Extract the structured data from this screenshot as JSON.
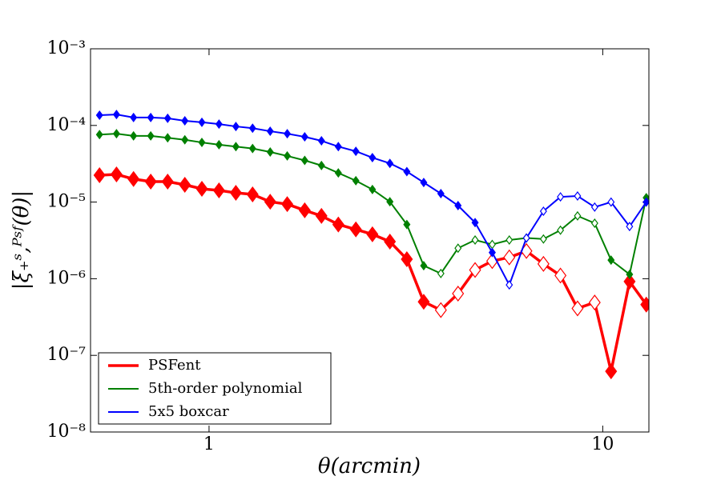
{
  "chart_data": {
    "type": "line",
    "x_label": "θ(arcmin)",
    "y_label": "|ξ₊ˢ,ᴾˢᶠ(θ)|",
    "log_x": true,
    "log_y": true,
    "xlim": [
      0.5,
      13.1
    ],
    "ylim": [
      1e-08,
      0.001
    ],
    "xticks": [
      1,
      10
    ],
    "yticks": [
      {
        "value": 1e-08,
        "label": "10⁻⁸"
      },
      {
        "value": 1e-07,
        "label": "10⁻⁷"
      },
      {
        "value": 1e-06,
        "label": "10⁻⁶"
      },
      {
        "value": 1e-05,
        "label": "10⁻⁵"
      },
      {
        "value": 0.0001,
        "label": "10⁻⁴"
      },
      {
        "value": 0.001,
        "label": "10⁻³"
      }
    ],
    "legend": "lower left",
    "x": [
      0.527,
      0.582,
      0.643,
      0.711,
      0.785,
      0.868,
      0.959,
      1.06,
      1.17,
      1.29,
      1.43,
      1.58,
      1.75,
      1.93,
      2.13,
      2.36,
      2.6,
      2.88,
      3.18,
      3.51,
      3.88,
      4.29,
      4.74,
      5.24,
      5.79,
      6.4,
      7.07,
      7.81,
      8.63,
      9.54,
      10.5,
      11.7,
      12.9
    ],
    "series": [
      {
        "name": "PSFent",
        "color": "#ff0000",
        "line_width": 3.5,
        "marker_size": 9,
        "values": [
          2.24e-05,
          2.3e-05,
          2e-05,
          1.85e-05,
          1.85e-05,
          1.68e-05,
          1.49e-05,
          1.42e-05,
          1.32e-05,
          1.26e-05,
          1.01e-05,
          9.4e-06,
          7.8e-06,
          6.6e-06,
          5.1e-06,
          4.4e-06,
          3.8e-06,
          3.05e-06,
          1.8e-06,
          5e-07,
          3.9e-07,
          6.4e-07,
          1.3e-06,
          1.7e-06,
          1.9e-06,
          2.3e-06,
          1.56e-06,
          1.1e-06,
          4.1e-07,
          4.9e-07,
          6.2e-08,
          9.2e-07,
          4.6e-07
        ],
        "open": [
          false,
          false,
          false,
          false,
          false,
          false,
          false,
          false,
          false,
          false,
          false,
          false,
          false,
          false,
          false,
          false,
          false,
          false,
          false,
          false,
          true,
          true,
          true,
          true,
          true,
          true,
          true,
          true,
          true,
          true,
          false,
          false,
          false
        ]
      },
      {
        "name": "5th-order polynomial",
        "color": "#008000",
        "line_width": 2,
        "marker_size": 5,
        "values": [
          7.6e-05,
          7.8e-05,
          7.3e-05,
          7.3e-05,
          6.9e-05,
          6.5e-05,
          6e-05,
          5.6e-05,
          5.3e-05,
          5e-05,
          4.5e-05,
          4e-05,
          3.5e-05,
          3e-05,
          2.4e-05,
          1.9e-05,
          1.46e-05,
          1.01e-05,
          5.1e-06,
          1.48e-06,
          1.17e-06,
          2.5e-06,
          3.2e-06,
          2.8e-06,
          3.2e-06,
          3.4e-06,
          3.3e-06,
          4.3e-06,
          6.6e-06,
          5.3e-06,
          1.75e-06,
          1.14e-06,
          1.14e-05
        ],
        "open": [
          false,
          false,
          false,
          false,
          false,
          false,
          false,
          false,
          false,
          false,
          false,
          false,
          false,
          false,
          false,
          false,
          false,
          false,
          false,
          false,
          true,
          true,
          true,
          true,
          true,
          true,
          true,
          true,
          true,
          true,
          false,
          false,
          false
        ]
      },
      {
        "name": "5x5 boxcar",
        "color": "#0000ff",
        "line_width": 2,
        "marker_size": 5,
        "values": [
          0.000136,
          0.000139,
          0.000127,
          0.000127,
          0.000124,
          0.000115,
          0.00011,
          0.000104,
          9.7e-05,
          9.2e-05,
          8.4e-05,
          7.8e-05,
          7.1e-05,
          6.3e-05,
          5.3e-05,
          4.6e-05,
          3.8e-05,
          3.2e-05,
          2.5e-05,
          1.8e-05,
          1.29e-05,
          9e-06,
          5.4e-06,
          2.2e-06,
          8.3e-07,
          3.4e-06,
          7.6e-06,
          1.17e-05,
          1.2e-05,
          8.6e-06,
          1e-05,
          4.8e-06,
          1e-05
        ],
        "open": [
          false,
          false,
          false,
          false,
          false,
          false,
          false,
          false,
          false,
          false,
          false,
          false,
          false,
          false,
          false,
          false,
          false,
          false,
          false,
          false,
          false,
          false,
          false,
          false,
          true,
          true,
          true,
          true,
          true,
          true,
          true,
          true,
          false
        ]
      }
    ]
  }
}
